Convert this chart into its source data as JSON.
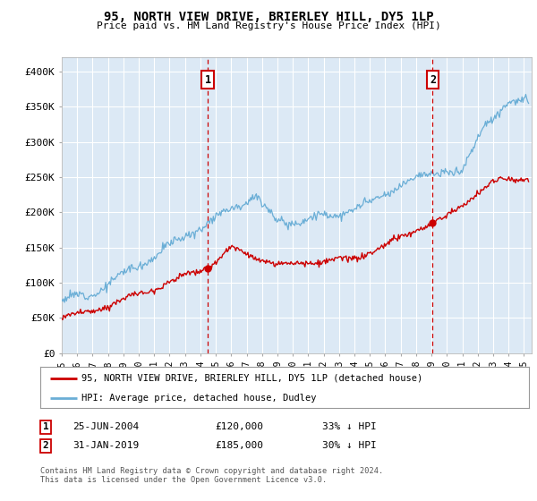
{
  "title": "95, NORTH VIEW DRIVE, BRIERLEY HILL, DY5 1LP",
  "subtitle": "Price paid vs. HM Land Registry's House Price Index (HPI)",
  "background_color": "#dce9f5",
  "grid_color": "#ffffff",
  "hpi_color": "#6aaed6",
  "price_color": "#cc0000",
  "sale1_date": "25-JUN-2004",
  "sale1_price": 120000,
  "sale1_label": "33% ↓ HPI",
  "sale1_x": 2004.49,
  "sale2_date": "31-JAN-2019",
  "sale2_price": 185000,
  "sale2_label": "30% ↓ HPI",
  "sale2_x": 2019.08,
  "ylim": [
    0,
    420000
  ],
  "xlim_start": 1995,
  "xlim_end": 2025.5,
  "legend_label_price": "95, NORTH VIEW DRIVE, BRIERLEY HILL, DY5 1LP (detached house)",
  "legend_label_hpi": "HPI: Average price, detached house, Dudley",
  "footer": "Contains HM Land Registry data © Crown copyright and database right 2024.\nThis data is licensed under the Open Government Licence v3.0.",
  "yticks": [
    0,
    50000,
    100000,
    150000,
    200000,
    250000,
    300000,
    350000,
    400000
  ],
  "ytick_labels": [
    "£0",
    "£50K",
    "£100K",
    "£150K",
    "£200K",
    "£250K",
    "£300K",
    "£350K",
    "£400K"
  ],
  "xticks": [
    1995,
    1996,
    1997,
    1998,
    1999,
    2000,
    2001,
    2002,
    2003,
    2004,
    2005,
    2006,
    2007,
    2008,
    2009,
    2010,
    2011,
    2012,
    2013,
    2014,
    2015,
    2016,
    2017,
    2018,
    2019,
    2020,
    2021,
    2022,
    2023,
    2024,
    2025
  ]
}
